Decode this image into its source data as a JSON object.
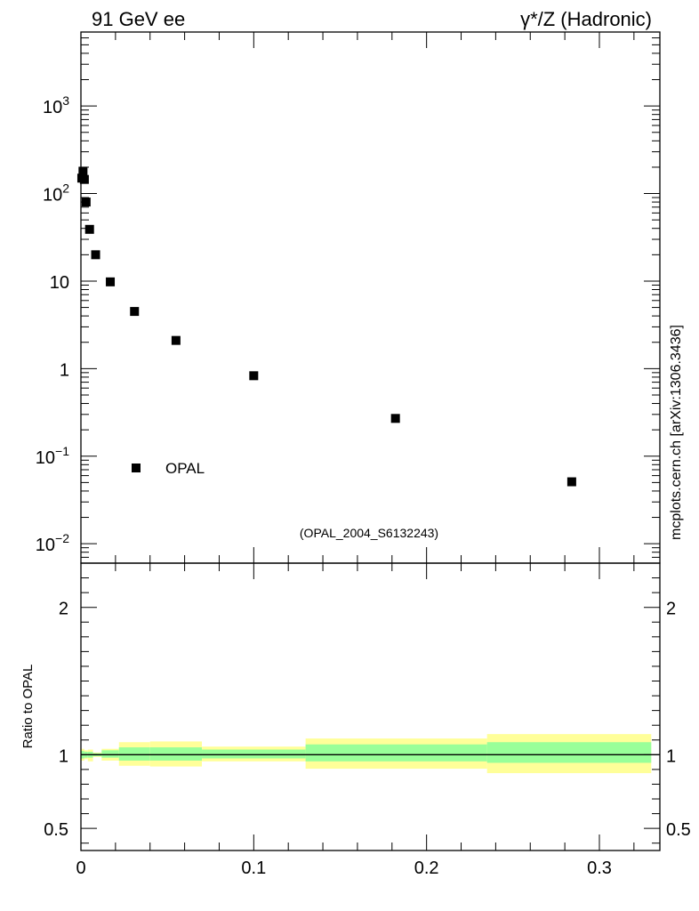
{
  "header": {
    "left_title": "91 GeV ee",
    "right_title": "γ*/Z (Hadronic)"
  },
  "side_label": "mcplots.cern.ch [arXiv:1306.3436]",
  "analysis_tag": "(OPAL_2004_S6132243)",
  "legend": {
    "label": "OPAL",
    "position": "lower-left"
  },
  "ratio_ylabel": "Ratio to OPAL",
  "colors": {
    "marker": "#000000",
    "band_inner": "#99ff99",
    "band_outer": "#ffff99",
    "side_label": "#808080",
    "analysis_tag": "#999999"
  },
  "chart_data": [
    {
      "type": "scatter",
      "yscale": "log",
      "xlim": [
        0,
        0.335
      ],
      "ylim": [
        0.006,
        7000
      ],
      "ytick_values": [
        0.01,
        0.1,
        1,
        10,
        100,
        1000
      ],
      "ytick_labels": [
        {
          "base": "10",
          "exp": "−2"
        },
        {
          "base": "10",
          "exp": "−1"
        },
        {
          "base": "1",
          "exp": ""
        },
        {
          "base": "10",
          "exp": ""
        },
        {
          "base": "10",
          "exp": "2"
        },
        {
          "base": "10",
          "exp": "3"
        }
      ],
      "series": [
        {
          "name": "OPAL",
          "x": [
            0.0005,
            0.0012,
            0.002,
            0.003,
            0.005,
            0.0085,
            0.017,
            0.031,
            0.055,
            0.1,
            0.182,
            0.284
          ],
          "y": [
            150,
            180,
            145,
            80,
            39,
            20,
            9.8,
            4.5,
            2.1,
            0.83,
            0.27,
            0.051
          ]
        }
      ]
    },
    {
      "type": "area",
      "xlim": [
        0,
        0.335
      ],
      "ylim": [
        0.35,
        2.3
      ],
      "yticks": [
        0.5,
        1,
        2
      ],
      "ytick_labels": [
        "0.5",
        "1",
        "2"
      ],
      "xticks": [
        0,
        0.1,
        0.2,
        0.3
      ],
      "xtick_labels": [
        "0",
        "0.1",
        "0.2",
        "0.3"
      ],
      "reference_line": 1,
      "bins": [
        {
          "x0": 0.0,
          "x1": 0.002,
          "inner": [
            0.975,
            1.025
          ],
          "outer": [
            0.96,
            1.04
          ]
        },
        {
          "x0": 0.002,
          "x1": 0.004,
          "inner": [
            0.98,
            1.02
          ],
          "outer": [
            0.97,
            1.03
          ]
        },
        {
          "x0": 0.004,
          "x1": 0.007,
          "inner": [
            0.98,
            1.02
          ],
          "outer": [
            0.955,
            1.035
          ]
        },
        {
          "x0": 0.007,
          "x1": 0.012,
          "inner": [
            0.99,
            1.01
          ],
          "outer": [
            0.985,
            1.015
          ]
        },
        {
          "x0": 0.012,
          "x1": 0.022,
          "inner": [
            0.98,
            1.03
          ],
          "outer": [
            0.96,
            1.04
          ]
        },
        {
          "x0": 0.022,
          "x1": 0.04,
          "inner": [
            0.96,
            1.05
          ],
          "outer": [
            0.925,
            1.085
          ]
        },
        {
          "x0": 0.04,
          "x1": 0.07,
          "inner": [
            0.96,
            1.05
          ],
          "outer": [
            0.92,
            1.09
          ]
        },
        {
          "x0": 0.07,
          "x1": 0.13,
          "inner": [
            0.975,
            1.035
          ],
          "outer": [
            0.955,
            1.055
          ]
        },
        {
          "x0": 0.13,
          "x1": 0.235,
          "inner": [
            0.955,
            1.07
          ],
          "outer": [
            0.905,
            1.11
          ]
        },
        {
          "x0": 0.235,
          "x1": 0.33,
          "inner": [
            0.945,
            1.085
          ],
          "outer": [
            0.875,
            1.14
          ]
        }
      ]
    }
  ]
}
